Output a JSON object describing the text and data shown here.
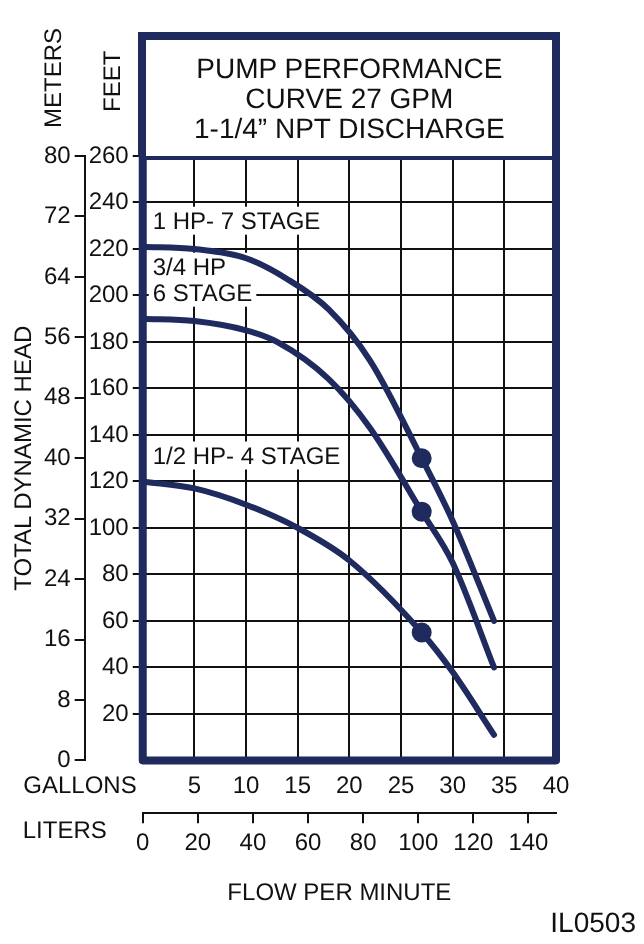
{
  "chart_data": {
    "type": "line",
    "title": "PUMP PERFORMANCE\nCURVE 27 GPM\n1-1/4” NPT DISCHARGE",
    "xlabel": "GALLONS",
    "x2label": "LITERS",
    "ylabel": "FEET",
    "y2label": "METERS",
    "annotations": [
      "TOTAL DYNAMIC HEAD",
      "FLOW PER MINUTE",
      "IL0503"
    ],
    "xlim": [
      0,
      40
    ],
    "xticks": [
      5,
      10,
      15,
      20,
      25,
      30,
      35,
      40
    ],
    "x2lim": [
      0,
      150
    ],
    "x2ticks": [
      0,
      20,
      40,
      60,
      80,
      100,
      120,
      140
    ],
    "ylim": [
      0,
      260
    ],
    "yticks": [
      20,
      40,
      60,
      80,
      100,
      120,
      140,
      160,
      180,
      200,
      220,
      240,
      260
    ],
    "y2lim": [
      0,
      80
    ],
    "y2ticks": [
      0,
      8,
      16,
      24,
      32,
      40,
      48,
      56,
      64,
      72,
      80
    ],
    "grid": true,
    "legend": false,
    "marker": "none",
    "line_style": "solid",
    "series": [
      {
        "name": "1 HP- 7 STAGE",
        "color": "#1f2a5e",
        "x": [
          0,
          5,
          10,
          14,
          18,
          22,
          27,
          30,
          34
        ],
        "values": [
          221,
          220,
          216,
          207,
          194,
          172,
          130,
          103,
          60
        ]
      },
      {
        "name": "3/4 HP\n6 STAGE",
        "color": "#1f2a5e",
        "x": [
          0,
          5,
          10,
          13,
          18,
          22,
          27,
          30,
          34
        ],
        "values": [
          190,
          189,
          185,
          180,
          164,
          143,
          107,
          85,
          40
        ]
      },
      {
        "name": "1/2 HP- 4 STAGE",
        "color": "#1f2a5e",
        "x": [
          0,
          5,
          10,
          15,
          20,
          27,
          30,
          34
        ],
        "values": [
          120,
          117,
          110,
          100,
          86,
          55,
          38,
          11
        ]
      },
      {
        "type": "scatter",
        "marker": "circle",
        "color": "#1f2a5e",
        "x": [
          27,
          27,
          27
        ],
        "values": [
          130,
          107,
          55
        ]
      }
    ]
  }
}
